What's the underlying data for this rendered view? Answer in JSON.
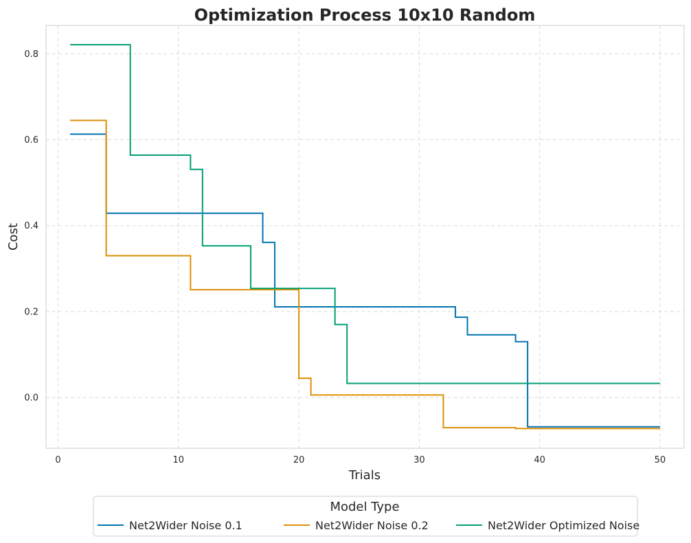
{
  "chart_data": {
    "type": "line",
    "step": "post",
    "title": "Optimization Process 10x10 Random",
    "xlabel": "Trials",
    "ylabel": "Cost",
    "xlim": [
      -1,
      52
    ],
    "ylim": [
      -0.118,
      0.866
    ],
    "xticks": [
      0,
      10,
      20,
      30,
      40,
      50
    ],
    "yticks": [
      0.0,
      0.2,
      0.4,
      0.6,
      0.8
    ],
    "xtick_labels": [
      "0",
      "10",
      "20",
      "30",
      "40",
      "50"
    ],
    "ytick_labels": [
      "0.0",
      "0.2",
      "0.4",
      "0.6",
      "0.8"
    ],
    "grid": true,
    "legend": {
      "title": "Model Type",
      "placement": "below",
      "entries": [
        "Net2Wider Noise 0.1",
        "Net2Wider Noise 0.2",
        "Net2Wider Optimized Noise"
      ]
    },
    "series": [
      {
        "name": "Net2Wider Noise 0.1",
        "color": "#0173b2",
        "points": [
          [
            1,
            0.613
          ],
          [
            4,
            0.429
          ],
          [
            17,
            0.361
          ],
          [
            18,
            0.211
          ],
          [
            33,
            0.187
          ],
          [
            34,
            0.146
          ],
          [
            38,
            0.13
          ],
          [
            39,
            -0.068
          ],
          [
            50,
            -0.068
          ]
        ]
      },
      {
        "name": "Net2Wider Noise 0.2",
        "color": "#de8f05",
        "points": [
          [
            1,
            0.645
          ],
          [
            4,
            0.33
          ],
          [
            11,
            0.251
          ],
          [
            20,
            0.045
          ],
          [
            21,
            0.006
          ],
          [
            32,
            -0.07
          ],
          [
            38,
            -0.072
          ],
          [
            50,
            -0.072
          ]
        ]
      },
      {
        "name": "Net2Wider Optimized Noise",
        "color": "#029e73",
        "points": [
          [
            1,
            0.821
          ],
          [
            6,
            0.564
          ],
          [
            11,
            0.531
          ],
          [
            12,
            0.353
          ],
          [
            16,
            0.254
          ],
          [
            23,
            0.17
          ],
          [
            24,
            0.033
          ],
          [
            50,
            0.033
          ]
        ]
      }
    ]
  }
}
